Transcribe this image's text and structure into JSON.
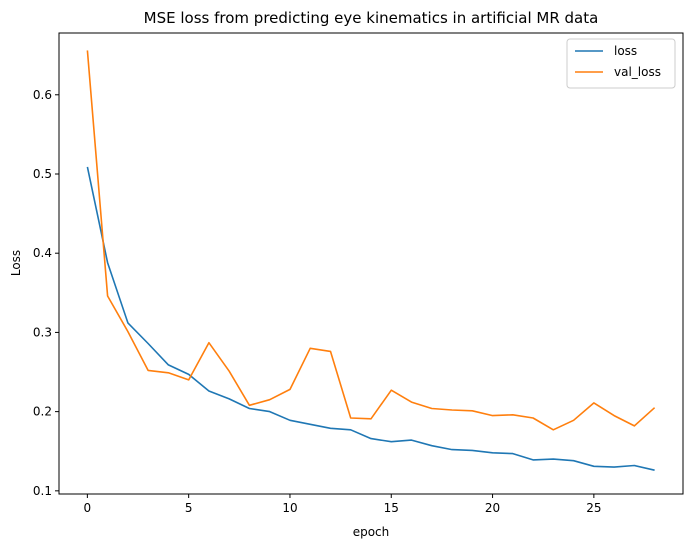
{
  "chart_data": {
    "type": "line",
    "title": "MSE loss from predicting eye kinematics in artificial MR data",
    "xlabel": "epoch",
    "ylabel": "Loss",
    "xlim": [
      -1.4,
      29.4
    ],
    "ylim": [
      0.096,
      0.678
    ],
    "xticks": [
      0,
      5,
      10,
      15,
      20,
      25
    ],
    "yticks": [
      0.1,
      0.2,
      0.3,
      0.4,
      0.5,
      0.6
    ],
    "grid": false,
    "legend_position": "top-right",
    "x": [
      0,
      1,
      2,
      3,
      4,
      5,
      6,
      7,
      8,
      9,
      10,
      11,
      12,
      13,
      14,
      15,
      16,
      17,
      18,
      19,
      20,
      21,
      22,
      23,
      24,
      25,
      26,
      27,
      28
    ],
    "series": [
      {
        "name": "loss",
        "color": "#1f77b4",
        "values": [
          0.509,
          0.388,
          0.312,
          0.286,
          0.259,
          0.247,
          0.226,
          0.216,
          0.204,
          0.2,
          0.189,
          0.184,
          0.179,
          0.177,
          0.166,
          0.162,
          0.164,
          0.157,
          0.152,
          0.151,
          0.148,
          0.147,
          0.139,
          0.14,
          0.138,
          0.131,
          0.13,
          0.132,
          0.126
        ]
      },
      {
        "name": "val_loss",
        "color": "#ff7f0e",
        "values": [
          0.656,
          0.346,
          0.301,
          0.252,
          0.249,
          0.24,
          0.287,
          0.251,
          0.208,
          0.215,
          0.228,
          0.28,
          0.276,
          0.192,
          0.191,
          0.227,
          0.212,
          0.204,
          0.202,
          0.201,
          0.195,
          0.196,
          0.192,
          0.177,
          0.189,
          0.211,
          0.195,
          0.182,
          0.205
        ]
      }
    ]
  }
}
